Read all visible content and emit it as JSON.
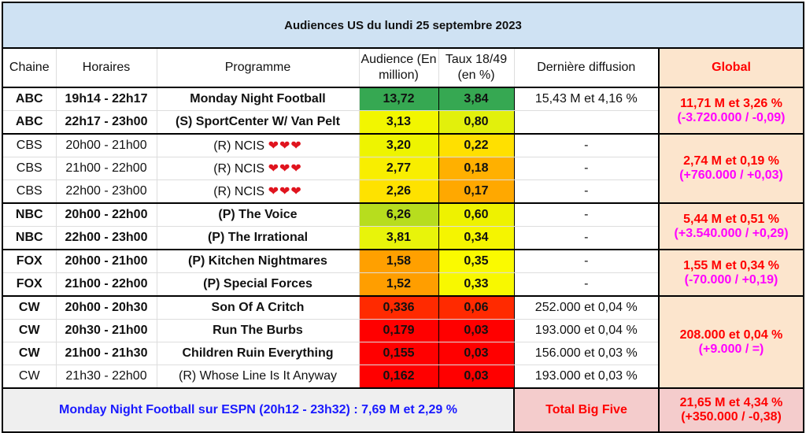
{
  "title": "Audiences US du lundi 25 septembre 2023",
  "headers": [
    "Chaine",
    "Horaires",
    "Programme",
    "Audience (En million)",
    "Taux 18/49 (en %)",
    "Dernière diffusion",
    "Global"
  ],
  "rows": [
    {
      "chaine": "ABC",
      "horaires": "19h14 - 22h17",
      "programme": "Monday Night Football",
      "audience": "13,72",
      "taux": "3,84",
      "derniere": "15,43 M et 4,16 %",
      "bold": true,
      "hearts": false,
      "aud_color": "#36a852",
      "taux_color": "#36a852"
    },
    {
      "chaine": "ABC",
      "horaires": "22h17 - 23h00",
      "programme": "(S) SportCenter W/ Van Pelt",
      "audience": "3,13",
      "taux": "0,80",
      "derniere": "",
      "bold": true,
      "hearts": false,
      "aud_color": "#f2f600",
      "taux_color": "#e2f00c"
    },
    {
      "chaine": "CBS",
      "horaires": "20h00 - 21h00",
      "programme": "(R) NCIS",
      "audience": "3,20",
      "taux": "0,22",
      "derniere": "-",
      "bold": false,
      "hearts": true,
      "aud_color": "#eef400",
      "taux_color": "#ffe000"
    },
    {
      "chaine": "CBS",
      "horaires": "21h00 - 22h00",
      "programme": "(R) NCIS",
      "audience": "2,77",
      "taux": "0,18",
      "derniere": "-",
      "bold": false,
      "hearts": true,
      "aud_color": "#f8ee00",
      "taux_color": "#ffb000"
    },
    {
      "chaine": "CBS",
      "horaires": "22h00 - 23h00",
      "programme": "(R) NCIS",
      "audience": "2,26",
      "taux": "0,17",
      "derniere": "-",
      "bold": false,
      "hearts": true,
      "aud_color": "#fee200",
      "taux_color": "#ffa800"
    },
    {
      "chaine": "NBC",
      "horaires": "20h00 - 22h00",
      "programme": "(P) The Voice",
      "audience": "6,26",
      "taux": "0,60",
      "derniere": "-",
      "bold": true,
      "hearts": false,
      "aud_color": "#b7dd1e",
      "taux_color": "#eef200"
    },
    {
      "chaine": "NBC",
      "horaires": "22h00 - 23h00",
      "programme": "(P) The Irrational",
      "audience": "3,81",
      "taux": "0,34",
      "derniere": "-",
      "bold": true,
      "hearts": false,
      "aud_color": "#e8f40a",
      "taux_color": "#f5f500"
    },
    {
      "chaine": "FOX",
      "horaires": "20h00 - 21h00",
      "programme": "(P) Kitchen Nightmares",
      "audience": "1,58",
      "taux": "0,35",
      "derniere": "-",
      "bold": true,
      "hearts": false,
      "aud_color": "#ffa000",
      "taux_color": "#fafa00"
    },
    {
      "chaine": "FOX",
      "horaires": "21h00 - 22h00",
      "programme": "(P) Special Forces",
      "audience": "1,52",
      "taux": "0,33",
      "derniere": "-",
      "bold": true,
      "hearts": false,
      "aud_color": "#ff9e00",
      "taux_color": "#f8f800"
    },
    {
      "chaine": "CW",
      "horaires": "20h00 - 20h30",
      "programme": "Son Of A Critch",
      "audience": "0,336",
      "taux": "0,06",
      "derniere": "252.000 et 0,04 %",
      "bold": true,
      "hearts": false,
      "aud_color": "#ff2a00",
      "taux_color": "#ff2a00"
    },
    {
      "chaine": "CW",
      "horaires": "20h30 - 21h00",
      "programme": "Run The Burbs",
      "audience": "0,179",
      "taux": "0,03",
      "derniere": "193.000 et 0,04 %",
      "bold": true,
      "hearts": false,
      "aud_color": "#ff0000",
      "taux_color": "#ff0000"
    },
    {
      "chaine": "CW",
      "horaires": "21h00 - 21h30",
      "programme": "Children Ruin Everything",
      "audience": "0,155",
      "taux": "0,03",
      "derniere": "156.000 et 0,03 %",
      "bold": true,
      "hearts": false,
      "aud_color": "#ff0000",
      "taux_color": "#ff0000"
    },
    {
      "chaine": "CW",
      "horaires": "21h30 - 22h00",
      "programme": "(R) Whose Line Is It Anyway",
      "audience": "0,162",
      "taux": "0,03",
      "derniere": "193.000 et 0,03 %",
      "bold": false,
      "hearts": false,
      "aud_color": "#ff0000",
      "taux_color": "#ff0000"
    }
  ],
  "hearts": "❤❤❤",
  "globals": [
    {
      "start": 0,
      "span": 2,
      "main": "11,71 M et 3,26 %",
      "diff": "(-3.720.000 / -0,09)"
    },
    {
      "start": 2,
      "span": 3,
      "main": "2,74 M et 0,19 %",
      "diff": "(+760.000 / +0,03)"
    },
    {
      "start": 5,
      "span": 2,
      "main": "5,44 M et 0,51 %",
      "diff": "(+3.540.000 / +0,29)"
    },
    {
      "start": 7,
      "span": 2,
      "main": "1,55 M et 0,34 %",
      "diff": "(-70.000 / +0,19)"
    },
    {
      "start": 9,
      "span": 4,
      "main": "208.000 et 0,04 %",
      "diff": "(+9.000 / =)"
    }
  ],
  "footer": {
    "espn": "Monday Night Football sur ESPN (20h12 - 23h32) : 7,69 M et 2,29 %",
    "total_label": "Total Big Five",
    "total_main": "21,65 M et 4,34 %",
    "total_diff": "(+350.000 / -0,38)"
  }
}
